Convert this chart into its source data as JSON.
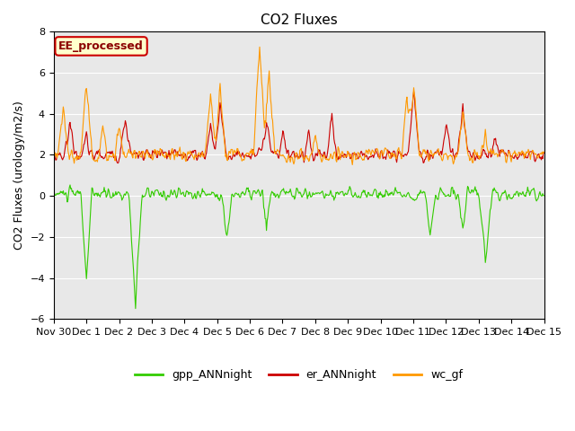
{
  "title": "CO2 Fluxes",
  "ylabel": "CO2 Fluxes (urology/m2/s)",
  "ylim": [
    -6,
    8
  ],
  "yticks": [
    -6,
    -4,
    -2,
    0,
    2,
    4,
    6,
    8
  ],
  "background_color": "#e8e8e8",
  "fig_background": "#ffffff",
  "colors": {
    "gpp": "#33cc00",
    "er": "#cc0000",
    "wc": "#ff9900"
  },
  "legend_label": "EE_processed",
  "legend_labels": [
    "gpp_ANNnight",
    "er_ANNnight",
    "wc_gf"
  ],
  "xtick_positions": [
    0,
    1,
    2,
    3,
    4,
    5,
    6,
    7,
    8,
    9,
    10,
    11,
    12,
    13,
    14,
    15
  ],
  "xtick_labels": [
    "Nov 30",
    "Dec 1",
    "Dec 2",
    "Dec 3",
    "Dec 4",
    "Dec 5",
    "Dec 6",
    "Dec 7",
    "Dec 8",
    "Dec 9",
    "Dec 10",
    "Dec 11",
    "Dec 12",
    "Dec 13",
    "Dec 14",
    "Dec 15"
  ]
}
